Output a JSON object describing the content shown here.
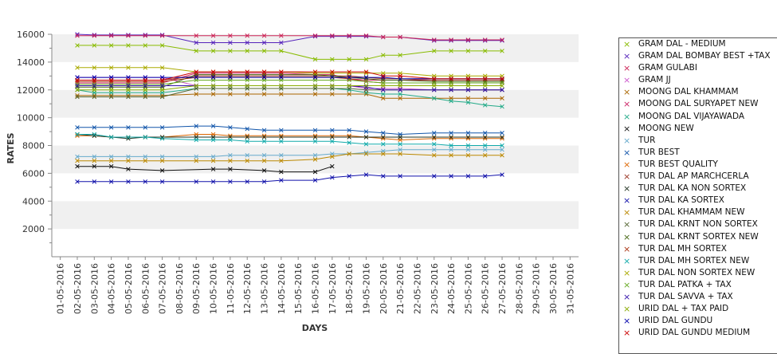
{
  "chart_data": {
    "type": "line",
    "xlabel": "DAYS",
    "ylabel": "RATES",
    "ylim": [
      0,
      16000
    ],
    "yticks": [
      2000,
      4000,
      6000,
      8000,
      10000,
      12000,
      14000,
      16000
    ],
    "categories": [
      "01-05-2016",
      "02-05-2016",
      "03-05-2016",
      "04-05-2016",
      "05-05-2016",
      "06-05-2016",
      "07-05-2016",
      "08-05-2016",
      "09-05-2016",
      "10-05-2016",
      "11-05-2016",
      "12-05-2016",
      "13-05-2016",
      "14-05-2016",
      "15-05-2016",
      "16-05-2016",
      "17-05-2016",
      "18-05-2016",
      "19-05-2016",
      "20-05-2016",
      "21-05-2016",
      "22-05-2016",
      "23-05-2016",
      "24-05-2016",
      "25-05-2016",
      "26-05-2016",
      "27-05-2016",
      "28-05-2016",
      "29-05-2016",
      "30-05-2016",
      "31-05-2016"
    ],
    "grid": "horizontal bands",
    "legend_position": "right",
    "series": [
      {
        "name": "GRAM DAL - MEDIUM",
        "color": "#88bb00",
        "values": [
          null,
          15200,
          15200,
          15200,
          15200,
          15200,
          15200,
          null,
          14800,
          14800,
          14800,
          14800,
          14800,
          14800,
          null,
          14200,
          14200,
          14200,
          14200,
          14500,
          14500,
          null,
          14800,
          14800,
          14800,
          14800,
          14800,
          null,
          null,
          null,
          null
        ]
      },
      {
        "name": "GRAM DAL BOMBAY BEST +TAX",
        "color": "#5522bb",
        "values": [
          null,
          16000,
          15950,
          15950,
          15950,
          15950,
          15950,
          null,
          15400,
          15400,
          15400,
          15400,
          15400,
          15400,
          null,
          15850,
          15850,
          15850,
          15850,
          15800,
          15800,
          null,
          15550,
          15550,
          15550,
          15550,
          15550,
          null,
          null,
          null,
          null
        ]
      },
      {
        "name": "GRAM GULABI",
        "color": "#cc2255",
        "values": [
          null,
          15900,
          15900,
          15900,
          15900,
          15900,
          15900,
          null,
          15900,
          15900,
          15900,
          15900,
          15900,
          15900,
          null,
          15900,
          15900,
          15900,
          15900,
          15800,
          15800,
          null,
          15600,
          15600,
          15600,
          15600,
          15600,
          null,
          null,
          null,
          null
        ]
      },
      {
        "name": "GRAM JJ",
        "color": "#cc55cc",
        "values": [
          null,
          12900,
          12900,
          12900,
          12900,
          12900,
          12900,
          null,
          12300,
          12300,
          12300,
          12300,
          12300,
          12300,
          null,
          12300,
          12300,
          12300,
          12100,
          12100,
          12100,
          null,
          12000,
          12000,
          12000,
          12000,
          12000,
          null,
          null,
          null,
          null
        ]
      },
      {
        "name": "MOONG DAL KHAMMAM",
        "color": "#aa6600",
        "values": [
          null,
          11600,
          11600,
          11600,
          11600,
          11600,
          11600,
          null,
          11700,
          11700,
          11700,
          11700,
          11700,
          11700,
          null,
          11700,
          11700,
          11700,
          11700,
          11400,
          11400,
          null,
          11400,
          11400,
          11400,
          11400,
          11400,
          null,
          null,
          null,
          null
        ]
      },
      {
        "name": "MOONG DAL SURYAPET NEW",
        "color": "#cc2266",
        "values": [
          null,
          12500,
          12500,
          12500,
          12500,
          12500,
          12500,
          null,
          13200,
          13200,
          13200,
          13200,
          13200,
          13200,
          null,
          13100,
          13100,
          12800,
          12700,
          12700,
          12700,
          null,
          12700,
          12700,
          12700,
          12700,
          12700,
          null,
          null,
          null,
          null
        ]
      },
      {
        "name": "MOONG DAL VIJAYAWADA",
        "color": "#22aa88",
        "values": [
          null,
          12000,
          11800,
          11800,
          11800,
          11800,
          11800,
          null,
          12100,
          12100,
          12100,
          12100,
          12100,
          12100,
          null,
          12100,
          12100,
          12000,
          11800,
          11700,
          11700,
          null,
          11400,
          11200,
          11100,
          10900,
          10800,
          null,
          null,
          null,
          null
        ]
      },
      {
        "name": "MOONG NEW",
        "color": "#111111",
        "values": [
          null,
          6500,
          6500,
          6500,
          6300,
          null,
          6200,
          null,
          null,
          6300,
          6300,
          null,
          6200,
          6100,
          null,
          6100,
          6500,
          null,
          null,
          null,
          null,
          null,
          null,
          null,
          null,
          null,
          null,
          null,
          null,
          null,
          null
        ]
      },
      {
        "name": "TUR",
        "color": "#66aacc",
        "values": [
          null,
          7200,
          7200,
          7200,
          7200,
          7200,
          7200,
          null,
          7200,
          7200,
          7300,
          7300,
          7300,
          7300,
          null,
          7300,
          7400,
          7400,
          7500,
          7600,
          7700,
          null,
          7700,
          7700,
          7700,
          7700,
          7700,
          null,
          null,
          null,
          null
        ]
      },
      {
        "name": "TUR BEST",
        "color": "#1155aa",
        "values": [
          null,
          9300,
          9300,
          9300,
          9300,
          9300,
          9300,
          null,
          9400,
          9400,
          9300,
          9200,
          9100,
          9100,
          null,
          9100,
          9100,
          9100,
          9000,
          8900,
          8800,
          null,
          8900,
          8900,
          8900,
          8900,
          8900,
          null,
          null,
          null,
          null
        ]
      },
      {
        "name": "TUR BEST QUALITY",
        "color": "#dd6600",
        "values": [
          null,
          8700,
          8700,
          8600,
          8600,
          8600,
          8600,
          null,
          8800,
          8800,
          8700,
          8700,
          8700,
          8700,
          null,
          8700,
          8700,
          8700,
          8600,
          8500,
          8400,
          null,
          8500,
          8500,
          8500,
          8500,
          8500,
          null,
          null,
          null,
          null
        ]
      },
      {
        "name": "TUR DAL AP MARCHCERLA",
        "color": "#993322",
        "values": [
          null,
          12700,
          12700,
          12700,
          12700,
          12700,
          12700,
          null,
          13000,
          13000,
          13000,
          13000,
          13000,
          13000,
          null,
          13000,
          13000,
          13000,
          12900,
          12800,
          12800,
          null,
          12700,
          12700,
          12700,
          12700,
          12700,
          null,
          null,
          null,
          null
        ]
      },
      {
        "name": "TUR DAL KA NON SORTEX",
        "color": "#223322",
        "values": [
          null,
          8800,
          8700,
          8600,
          8500,
          8600,
          8600,
          null,
          8600,
          8600,
          8600,
          8600,
          8600,
          8600,
          null,
          8600,
          8600,
          8600,
          8600,
          8600,
          8600,
          null,
          8600,
          8600,
          8600,
          8600,
          8600,
          null,
          null,
          null,
          null
        ]
      },
      {
        "name": "TUR DAL KA SORTEX",
        "color": "#1111aa",
        "values": [
          null,
          5400,
          5400,
          5400,
          5400,
          5400,
          5400,
          null,
          5400,
          5400,
          5400,
          5400,
          5400,
          5500,
          null,
          5500,
          5700,
          5800,
          5900,
          5800,
          5800,
          null,
          5800,
          5800,
          5800,
          5800,
          5900,
          null,
          null,
          null,
          null
        ]
      },
      {
        "name": "TUR DAL KHAMMAM NEW",
        "color": "#bb8800",
        "values": [
          null,
          6900,
          6900,
          6900,
          6900,
          6900,
          6900,
          null,
          6900,
          6900,
          6900,
          6900,
          6900,
          6900,
          null,
          7000,
          7200,
          7400,
          7400,
          7400,
          7400,
          null,
          7300,
          7300,
          7300,
          7300,
          7300,
          null,
          null,
          null,
          null
        ]
      },
      {
        "name": "TUR DAL KRNT NON SORTEX",
        "color": "#556633",
        "values": [
          null,
          11500,
          11500,
          11500,
          11500,
          11500,
          11500,
          null,
          12100,
          12100,
          12100,
          12100,
          12100,
          12100,
          null,
          12100,
          12100,
          12100,
          12000,
          12000,
          12000,
          null,
          12000,
          12000,
          12000,
          12000,
          12000,
          null,
          null,
          null,
          null
        ]
      },
      {
        "name": "TUR DAL KRNT SORTEX NEW",
        "color": "#446611",
        "values": [
          null,
          12200,
          12200,
          12200,
          12200,
          12200,
          12200,
          null,
          13100,
          13100,
          13100,
          13100,
          13100,
          13100,
          null,
          13100,
          13000,
          12900,
          12800,
          12700,
          12700,
          null,
          12600,
          12600,
          12600,
          12600,
          12600,
          null,
          null,
          null,
          null
        ]
      },
      {
        "name": "TUR DAL MH SORTEX",
        "color": "#aa3311",
        "values": [
          null,
          12600,
          12600,
          12600,
          12600,
          12600,
          12600,
          null,
          12900,
          12900,
          12900,
          12900,
          12900,
          12900,
          null,
          12900,
          12900,
          12800,
          12600,
          12500,
          12500,
          null,
          12500,
          12500,
          12500,
          12500,
          12500,
          null,
          null,
          null,
          null
        ]
      },
      {
        "name": "TUR DAL MH SORTEX NEW",
        "color": "#11aaaa",
        "values": [
          null,
          8800,
          8800,
          8600,
          8600,
          8600,
          8500,
          null,
          8400,
          8400,
          8400,
          8300,
          8300,
          8300,
          null,
          8300,
          8300,
          8200,
          8100,
          8100,
          8100,
          null,
          8100,
          8000,
          8000,
          8000,
          8000,
          null,
          null,
          null,
          null
        ]
      },
      {
        "name": "TUR DAL NON SORTEX NEW",
        "color": "#aaaa00",
        "values": [
          null,
          13600,
          13600,
          13600,
          13600,
          13600,
          13600,
          null,
          13300,
          13300,
          13300,
          13300,
          13300,
          13300,
          null,
          13200,
          13200,
          13200,
          13200,
          13200,
          13200,
          null,
          13000,
          13000,
          13000,
          13000,
          13000,
          null,
          null,
          null,
          null
        ]
      },
      {
        "name": "TUR DAL PATKA + TAX",
        "color": "#66aa22",
        "values": [
          null,
          12400,
          12400,
          12400,
          12400,
          12400,
          12400,
          null,
          12700,
          12700,
          12700,
          12700,
          12700,
          12700,
          null,
          12700,
          12700,
          12700,
          12600,
          12500,
          12500,
          null,
          12500,
          12500,
          12500,
          12500,
          12500,
          null,
          null,
          null,
          null
        ]
      },
      {
        "name": "TUR DAL SAVVA + TAX",
        "color": "#3311aa",
        "values": [
          null,
          12300,
          12300,
          12300,
          12300,
          12300,
          12300,
          null,
          12300,
          12300,
          12300,
          12300,
          12300,
          12300,
          null,
          12300,
          12300,
          12300,
          12200,
          12000,
          12000,
          null,
          12000,
          12000,
          12000,
          12000,
          12000,
          null,
          null,
          null,
          null
        ]
      },
      {
        "name": "URID DAL + TAX PAID",
        "color": "#88aa00",
        "values": [
          null,
          12000,
          12000,
          12000,
          12000,
          12000,
          12000,
          null,
          12300,
          12300,
          12300,
          12300,
          12300,
          12300,
          null,
          12300,
          12300,
          12300,
          12300,
          12300,
          12300,
          null,
          12300,
          12300,
          12300,
          12300,
          12300,
          null,
          null,
          null,
          null
        ]
      },
      {
        "name": "URID DAL GUNDU",
        "color": "#0000aa",
        "values": [
          null,
          12900,
          12900,
          12900,
          12900,
          12900,
          12900,
          null,
          12900,
          12900,
          12900,
          12900,
          12900,
          12900,
          null,
          12900,
          12900,
          12900,
          12900,
          12900,
          12800,
          null,
          12800,
          12800,
          12800,
          12800,
          12800,
          null,
          null,
          null,
          null
        ]
      },
      {
        "name": "URID DAL GUNDU MEDIUM",
        "color": "#cc0000",
        "values": [
          null,
          12700,
          12700,
          12700,
          12700,
          12700,
          12700,
          null,
          13300,
          13300,
          13300,
          13300,
          13300,
          13300,
          null,
          13300,
          13300,
          13300,
          13300,
          13000,
          13000,
          null,
          12800,
          12800,
          12800,
          12800,
          12800,
          null,
          null,
          null,
          null
        ]
      }
    ]
  }
}
